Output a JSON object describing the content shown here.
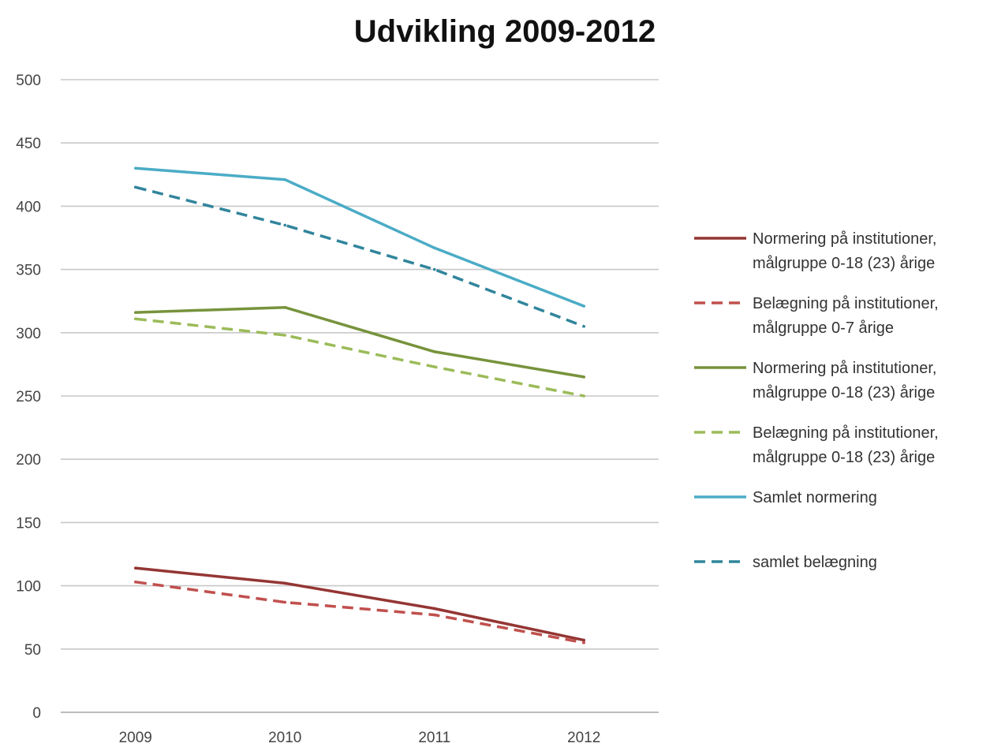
{
  "chart_data": {
    "type": "line",
    "title": "Udvikling 2009-2012",
    "xlabel": "",
    "ylabel": "",
    "x": [
      "2009",
      "2010",
      "2011",
      "2012"
    ],
    "ylim": [
      0,
      500
    ],
    "yticks": [
      0,
      50,
      100,
      150,
      200,
      250,
      300,
      350,
      400,
      450,
      500
    ],
    "grid": true,
    "legend_position": "right",
    "series": [
      {
        "name": [
          "Normering på institutioner,",
          "målgruppe 0-18 (23) årige"
        ],
        "values": [
          114,
          102,
          82,
          57
        ],
        "color": "#943634",
        "dashed": false
      },
      {
        "name": [
          "Belægning på institutioner,",
          "målgruppe 0-7 årige"
        ],
        "values": [
          103,
          87,
          77,
          55
        ],
        "color": "#c0504d",
        "dashed": true
      },
      {
        "name": [
          "Normering på institutioner,",
          "målgruppe 0-18 (23) årige"
        ],
        "values": [
          316,
          320,
          285,
          265
        ],
        "color": "#77933c",
        "dashed": false
      },
      {
        "name": [
          "Belægning på institutioner,",
          "målgruppe 0-18 (23) årige"
        ],
        "values": [
          311,
          298,
          273,
          250
        ],
        "color": "#9bbb59",
        "dashed": true
      },
      {
        "name": [
          "Samlet normering"
        ],
        "values": [
          430,
          421,
          367,
          321
        ],
        "color": "#4bacc6",
        "dashed": false
      },
      {
        "name": [
          "samlet belægning"
        ],
        "values": [
          415,
          385,
          350,
          305
        ],
        "color": "#31859c",
        "dashed": true
      }
    ]
  }
}
